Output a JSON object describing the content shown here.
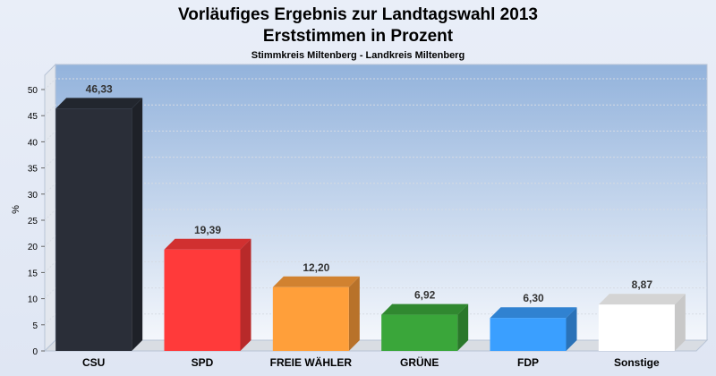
{
  "chart_data": {
    "type": "bar",
    "title": "Vorläufiges Ergebnis zur Landtagswahl 2013",
    "title2": "Erststimmen in Prozent",
    "subtitle": "Stimmkreis Miltenberg - Landkreis Miltenberg",
    "ylabel": "%",
    "ylim": [
      0,
      50
    ],
    "yticks": [
      "0",
      "5",
      "10",
      "15",
      "20",
      "25",
      "30",
      "35",
      "40",
      "45",
      "50"
    ],
    "grid": true,
    "categories": [
      "CSU",
      "SPD",
      "FREIE WÄHLER",
      "GRÜNE",
      "FDP",
      "Sonstige"
    ],
    "values": [
      46.33,
      19.39,
      12.2,
      6.92,
      6.3,
      8.87
    ],
    "value_labels": [
      "46,33",
      "19,39",
      "12,20",
      "6,92",
      "6,30",
      "8,87"
    ],
    "colors": [
      "#2a2e38",
      "#ff3a3a",
      "#ff9f3a",
      "#3aa63a",
      "#3a9fff",
      "#ffffff"
    ]
  }
}
